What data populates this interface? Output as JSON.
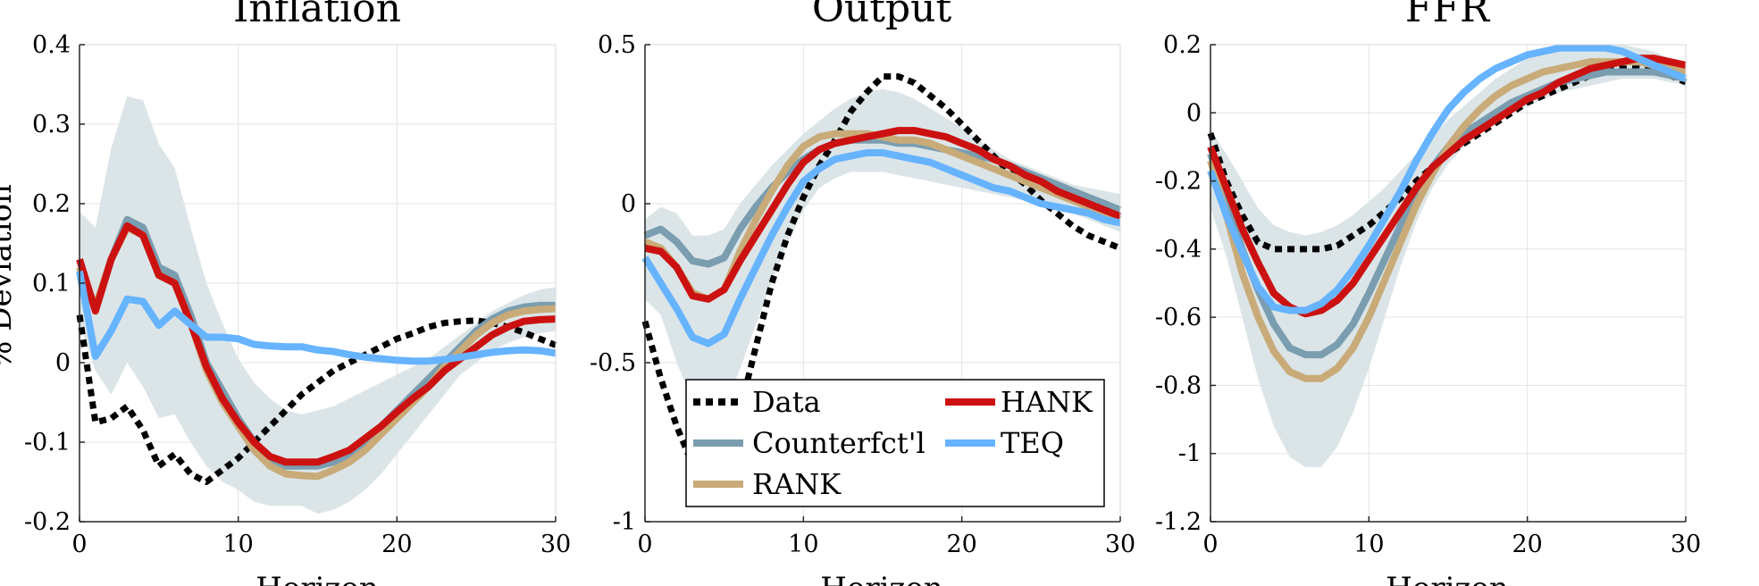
{
  "chart_data": [
    {
      "type": "line",
      "title": "Inflation",
      "xlabel": "Horizon",
      "ylabel": "% Deviation",
      "xlim": [
        0,
        30
      ],
      "ylim": [
        -0.2,
        0.4
      ],
      "xticks": [
        0,
        10,
        20,
        30
      ],
      "yticks": [
        -0.2,
        -0.1,
        0,
        0.1,
        0.2,
        0.3,
        0.4
      ],
      "ytick_labels": [
        "-0.2",
        "-0.1",
        "0",
        "0.1",
        "0.2",
        "0.3",
        "0.4"
      ],
      "grid": true,
      "x": [
        0,
        1,
        2,
        3,
        4,
        5,
        6,
        7,
        8,
        9,
        10,
        11,
        12,
        13,
        14,
        15,
        16,
        17,
        18,
        19,
        20,
        21,
        22,
        23,
        24,
        25,
        26,
        27,
        28,
        29,
        30
      ],
      "band": {
        "name": "Confidence band",
        "color": "#dbe5e8",
        "upper": [
          0.19,
          0.17,
          0.27,
          0.335,
          0.33,
          0.275,
          0.245,
          0.17,
          0.1,
          0.05,
          0.005,
          -0.025,
          -0.045,
          -0.06,
          -0.065,
          -0.06,
          -0.055,
          -0.045,
          -0.035,
          -0.025,
          -0.015,
          -0.005,
          0.005,
          0.02,
          0.035,
          0.05,
          0.065,
          0.075,
          0.085,
          0.092,
          0.095
        ],
        "lower": [
          0.05,
          -0.01,
          -0.04,
          0.0,
          -0.03,
          -0.07,
          -0.065,
          -0.1,
          -0.13,
          -0.15,
          -0.16,
          -0.175,
          -0.18,
          -0.18,
          -0.18,
          -0.19,
          -0.185,
          -0.175,
          -0.16,
          -0.14,
          -0.115,
          -0.09,
          -0.065,
          -0.04,
          -0.015,
          0.0,
          0.015,
          0.025,
          0.032,
          0.037,
          0.04
        ]
      },
      "series": [
        {
          "name": "Data",
          "color": "#000000",
          "style": "dotted",
          "values": [
            0.06,
            -0.075,
            -0.07,
            -0.055,
            -0.085,
            -0.13,
            -0.115,
            -0.14,
            -0.15,
            -0.135,
            -0.12,
            -0.1,
            -0.08,
            -0.06,
            -0.04,
            -0.025,
            -0.01,
            0.0,
            0.01,
            0.02,
            0.03,
            0.037,
            0.045,
            0.05,
            0.052,
            0.053,
            0.05,
            0.045,
            0.038,
            0.03,
            0.022
          ]
        },
        {
          "name": "Counterfct'l",
          "color": "#7a9db0",
          "style": "solid",
          "values": [
            0.12,
            0.07,
            0.13,
            0.18,
            0.17,
            0.12,
            0.11,
            0.06,
            0.0,
            -0.035,
            -0.07,
            -0.1,
            -0.12,
            -0.13,
            -0.13,
            -0.13,
            -0.125,
            -0.115,
            -0.1,
            -0.08,
            -0.06,
            -0.04,
            -0.02,
            0.0,
            0.02,
            0.04,
            0.055,
            0.065,
            0.07,
            0.072,
            0.072
          ]
        },
        {
          "name": "RANK",
          "color": "#c8ab78",
          "style": "solid",
          "values": [
            0.12,
            0.07,
            0.13,
            0.17,
            0.16,
            0.11,
            0.1,
            0.05,
            -0.01,
            -0.05,
            -0.08,
            -0.11,
            -0.13,
            -0.14,
            -0.142,
            -0.143,
            -0.135,
            -0.125,
            -0.11,
            -0.09,
            -0.07,
            -0.05,
            -0.03,
            -0.005,
            0.015,
            0.035,
            0.05,
            0.06,
            0.065,
            0.067,
            0.068
          ]
        },
        {
          "name": "HANK",
          "color": "#cc1111",
          "style": "solid",
          "values": [
            0.13,
            0.065,
            0.13,
            0.172,
            0.16,
            0.11,
            0.1,
            0.05,
            -0.005,
            -0.045,
            -0.075,
            -0.1,
            -0.118,
            -0.125,
            -0.125,
            -0.125,
            -0.118,
            -0.11,
            -0.095,
            -0.08,
            -0.062,
            -0.045,
            -0.03,
            -0.01,
            0.005,
            0.02,
            0.035,
            0.045,
            0.052,
            0.054,
            0.055
          ]
        },
        {
          "name": "TEQ",
          "color": "#66b3ff",
          "style": "solid",
          "values": [
            0.115,
            0.008,
            0.04,
            0.08,
            0.077,
            0.047,
            0.065,
            0.048,
            0.032,
            0.032,
            0.03,
            0.023,
            0.021,
            0.02,
            0.02,
            0.016,
            0.014,
            0.01,
            0.007,
            0.005,
            0.003,
            0.002,
            0.002,
            0.004,
            0.007,
            0.01,
            0.013,
            0.015,
            0.016,
            0.015,
            0.012
          ]
        }
      ]
    },
    {
      "type": "line",
      "title": "Output",
      "xlabel": "Horizon",
      "ylabel": "",
      "xlim": [
        0,
        30
      ],
      "ylim": [
        -1,
        0.5
      ],
      "xticks": [
        0,
        10,
        20,
        30
      ],
      "yticks": [
        -1,
        -0.5,
        0,
        0.5
      ],
      "ytick_labels": [
        "-1",
        "-0.5",
        "0",
        "0.5"
      ],
      "grid": true,
      "x": [
        0,
        1,
        2,
        3,
        4,
        5,
        6,
        7,
        8,
        9,
        10,
        11,
        12,
        13,
        14,
        15,
        16,
        17,
        18,
        19,
        20,
        21,
        22,
        23,
        24,
        25,
        26,
        27,
        28,
        29,
        30
      ],
      "band": {
        "name": "Confidence band",
        "color": "#dbe5e8",
        "upper": [
          -0.05,
          -0.01,
          -0.03,
          -0.1,
          -0.1,
          -0.08,
          0.0,
          0.06,
          0.12,
          0.17,
          0.22,
          0.26,
          0.3,
          0.33,
          0.35,
          0.36,
          0.35,
          0.33,
          0.3,
          0.27,
          0.24,
          0.2,
          0.17,
          0.14,
          0.12,
          0.1,
          0.08,
          0.06,
          0.05,
          0.04,
          0.03
        ],
        "lower": [
          -0.3,
          -0.35,
          -0.5,
          -0.62,
          -0.66,
          -0.64,
          -0.52,
          -0.38,
          -0.25,
          -0.12,
          -0.02,
          0.05,
          0.08,
          0.1,
          0.1,
          0.1,
          0.09,
          0.08,
          0.07,
          0.06,
          0.05,
          0.04,
          0.03,
          0.02,
          0.01,
          0.0,
          -0.01,
          -0.03,
          -0.05,
          -0.07,
          -0.09
        ]
      },
      "series": [
        {
          "name": "Data",
          "color": "#000000",
          "style": "dotted",
          "values": [
            -0.37,
            -0.55,
            -0.7,
            -0.82,
            -0.88,
            -0.8,
            -0.65,
            -0.45,
            -0.25,
            -0.1,
            0.02,
            0.12,
            0.2,
            0.29,
            0.35,
            0.4,
            0.4,
            0.38,
            0.34,
            0.3,
            0.25,
            0.2,
            0.15,
            0.1,
            0.06,
            0.01,
            -0.03,
            -0.07,
            -0.1,
            -0.12,
            -0.14
          ]
        },
        {
          "name": "Counterfct'l",
          "color": "#7a9db0",
          "style": "solid",
          "values": [
            -0.1,
            -0.08,
            -0.12,
            -0.18,
            -0.19,
            -0.17,
            -0.08,
            -0.01,
            0.05,
            0.1,
            0.14,
            0.17,
            0.19,
            0.2,
            0.2,
            0.2,
            0.19,
            0.19,
            0.18,
            0.17,
            0.16,
            0.15,
            0.14,
            0.12,
            0.1,
            0.08,
            0.06,
            0.04,
            0.02,
            0.0,
            -0.02
          ]
        },
        {
          "name": "RANK",
          "color": "#c8ab78",
          "style": "solid",
          "values": [
            -0.12,
            -0.14,
            -0.2,
            -0.28,
            -0.3,
            -0.27,
            -0.15,
            -0.05,
            0.04,
            0.12,
            0.18,
            0.21,
            0.22,
            0.22,
            0.22,
            0.21,
            0.2,
            0.2,
            0.19,
            0.17,
            0.15,
            0.13,
            0.11,
            0.09,
            0.07,
            0.05,
            0.03,
            0.01,
            -0.01,
            -0.03,
            -0.05
          ]
        },
        {
          "name": "HANK",
          "color": "#cc1111",
          "style": "solid",
          "values": [
            -0.14,
            -0.15,
            -0.2,
            -0.29,
            -0.3,
            -0.27,
            -0.18,
            -0.1,
            -0.02,
            0.06,
            0.13,
            0.17,
            0.19,
            0.2,
            0.21,
            0.22,
            0.23,
            0.23,
            0.22,
            0.21,
            0.19,
            0.17,
            0.14,
            0.12,
            0.09,
            0.07,
            0.04,
            0.02,
            0.0,
            -0.02,
            -0.04
          ]
        },
        {
          "name": "TEQ",
          "color": "#66b3ff",
          "style": "solid",
          "values": [
            -0.17,
            -0.25,
            -0.33,
            -0.42,
            -0.44,
            -0.41,
            -0.3,
            -0.2,
            -0.1,
            -0.01,
            0.07,
            0.11,
            0.14,
            0.15,
            0.16,
            0.16,
            0.15,
            0.14,
            0.13,
            0.11,
            0.09,
            0.07,
            0.05,
            0.04,
            0.02,
            0.0,
            -0.01,
            -0.02,
            -0.03,
            -0.05,
            -0.06
          ]
        }
      ],
      "legend": {
        "position": "bottom-left",
        "columns": 2,
        "order": [
          "Data",
          "HANK",
          "Counterfct'l",
          "TEQ",
          "RANK"
        ]
      }
    },
    {
      "type": "line",
      "title": "FFR",
      "xlabel": "Horizon",
      "ylabel": "",
      "xlim": [
        0,
        30
      ],
      "ylim": [
        -1.2,
        0.2
      ],
      "xticks": [
        0,
        10,
        20,
        30
      ],
      "yticks": [
        -1.2,
        -1,
        -0.8,
        -0.6,
        -0.4,
        -0.2,
        0,
        0.2
      ],
      "ytick_labels": [
        "-1.2",
        "-1",
        "-0.8",
        "-0.6",
        "-0.4",
        "-0.2",
        "0",
        "0.2"
      ],
      "grid": true,
      "x": [
        0,
        1,
        2,
        3,
        4,
        5,
        6,
        7,
        8,
        9,
        10,
        11,
        12,
        13,
        14,
        15,
        16,
        17,
        18,
        19,
        20,
        21,
        22,
        23,
        24,
        25,
        26,
        27,
        28,
        29,
        30
      ],
      "band": {
        "name": "Confidence band",
        "color": "#dbe5e8",
        "upper": [
          -0.05,
          -0.12,
          -0.2,
          -0.28,
          -0.33,
          -0.35,
          -0.36,
          -0.35,
          -0.33,
          -0.3,
          -0.26,
          -0.22,
          -0.17,
          -0.12,
          -0.07,
          -0.02,
          0.02,
          0.06,
          0.1,
          0.13,
          0.16,
          0.18,
          0.2,
          0.2,
          0.2,
          0.2,
          0.2,
          0.19,
          0.18,
          0.16,
          0.14
        ],
        "lower": [
          -0.28,
          -0.42,
          -0.6,
          -0.78,
          -0.92,
          -1.01,
          -1.04,
          -1.04,
          -0.98,
          -0.88,
          -0.75,
          -0.6,
          -0.45,
          -0.32,
          -0.22,
          -0.15,
          -0.1,
          -0.06,
          -0.03,
          0.0,
          0.02,
          0.04,
          0.06,
          0.07,
          0.08,
          0.09,
          0.1,
          0.1,
          0.1,
          0.09,
          0.08
        ]
      },
      "series": [
        {
          "name": "Data",
          "color": "#000000",
          "style": "dotted",
          "values": [
            -0.06,
            -0.2,
            -0.3,
            -0.38,
            -0.4,
            -0.4,
            -0.4,
            -0.4,
            -0.39,
            -0.36,
            -0.33,
            -0.29,
            -0.25,
            -0.2,
            -0.16,
            -0.12,
            -0.09,
            -0.06,
            -0.03,
            0.0,
            0.03,
            0.05,
            0.07,
            0.09,
            0.11,
            0.12,
            0.13,
            0.13,
            0.12,
            0.11,
            0.09
          ]
        },
        {
          "name": "Counterfct'l",
          "color": "#7a9db0",
          "style": "solid",
          "values": [
            -0.12,
            -0.26,
            -0.4,
            -0.52,
            -0.62,
            -0.69,
            -0.71,
            -0.71,
            -0.68,
            -0.62,
            -0.53,
            -0.43,
            -0.33,
            -0.24,
            -0.16,
            -0.1,
            -0.06,
            -0.03,
            0.0,
            0.03,
            0.05,
            0.07,
            0.09,
            0.1,
            0.11,
            0.12,
            0.12,
            0.12,
            0.12,
            0.11,
            0.1
          ]
        },
        {
          "name": "RANK",
          "color": "#c8ab78",
          "style": "solid",
          "values": [
            -0.14,
            -0.3,
            -0.47,
            -0.6,
            -0.7,
            -0.76,
            -0.78,
            -0.78,
            -0.75,
            -0.69,
            -0.6,
            -0.49,
            -0.38,
            -0.27,
            -0.18,
            -0.1,
            -0.04,
            0.01,
            0.05,
            0.08,
            0.1,
            0.12,
            0.13,
            0.14,
            0.15,
            0.15,
            0.15,
            0.15,
            0.14,
            0.13,
            0.12
          ]
        },
        {
          "name": "HANK",
          "color": "#cc1111",
          "style": "solid",
          "values": [
            -0.1,
            -0.22,
            -0.34,
            -0.44,
            -0.53,
            -0.57,
            -0.59,
            -0.58,
            -0.55,
            -0.5,
            -0.43,
            -0.36,
            -0.29,
            -0.22,
            -0.16,
            -0.12,
            -0.08,
            -0.05,
            -0.02,
            0.01,
            0.04,
            0.06,
            0.09,
            0.11,
            0.13,
            0.14,
            0.15,
            0.16,
            0.16,
            0.15,
            0.14
          ]
        },
        {
          "name": "TEQ",
          "color": "#66b3ff",
          "style": "solid",
          "values": [
            -0.17,
            -0.3,
            -0.41,
            -0.51,
            -0.57,
            -0.58,
            -0.58,
            -0.56,
            -0.52,
            -0.46,
            -0.39,
            -0.31,
            -0.23,
            -0.14,
            -0.06,
            0.01,
            0.06,
            0.1,
            0.13,
            0.15,
            0.17,
            0.18,
            0.19,
            0.19,
            0.19,
            0.19,
            0.18,
            0.16,
            0.14,
            0.12,
            0.1
          ]
        }
      ]
    }
  ]
}
